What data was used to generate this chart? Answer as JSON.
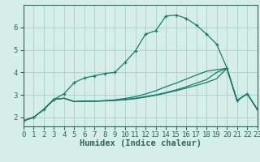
{
  "xlabel": "Humidex (Indice chaleur)",
  "background_color": "#d5eeea",
  "grid_color": "#b0d4cf",
  "line_color": "#1a7a6e",
  "spine_color": "#336655",
  "xlim": [
    0,
    23
  ],
  "ylim": [
    1.6,
    7.0
  ],
  "xticks": [
    0,
    1,
    2,
    3,
    4,
    5,
    6,
    7,
    8,
    9,
    10,
    11,
    12,
    13,
    14,
    15,
    16,
    17,
    18,
    19,
    20,
    21,
    22,
    23
  ],
  "yticks": [
    2,
    3,
    4,
    5,
    6
  ],
  "tick_fontsize": 6.5,
  "xlabel_fontsize": 7.5,
  "series": [
    {
      "y": [
        1.85,
        2.0,
        2.35,
        2.8,
        3.05,
        3.55,
        3.75,
        3.85,
        3.95,
        4.0,
        4.45,
        4.95,
        5.7,
        5.85,
        6.5,
        6.55,
        6.4,
        6.1,
        5.7,
        5.25,
        4.2,
        2.75,
        3.05,
        2.35
      ],
      "marker": "+",
      "ms": 3.5
    },
    {
      "y": [
        1.85,
        2.0,
        2.35,
        2.8,
        2.85,
        2.7,
        2.72,
        2.72,
        2.74,
        2.76,
        2.8,
        2.85,
        2.92,
        3.0,
        3.1,
        3.22,
        3.36,
        3.52,
        3.68,
        4.0,
        4.18,
        2.75,
        3.05,
        2.35
      ],
      "marker": null,
      "ms": 0
    },
    {
      "y": [
        1.85,
        2.0,
        2.35,
        2.8,
        2.85,
        2.7,
        2.72,
        2.72,
        2.74,
        2.78,
        2.84,
        2.92,
        3.04,
        3.18,
        3.36,
        3.52,
        3.7,
        3.88,
        4.05,
        4.12,
        4.18,
        2.75,
        3.05,
        2.35
      ],
      "marker": null,
      "ms": 0
    },
    {
      "y": [
        1.85,
        2.0,
        2.35,
        2.8,
        2.85,
        2.7,
        2.72,
        2.72,
        2.73,
        2.75,
        2.78,
        2.83,
        2.9,
        2.98,
        3.08,
        3.18,
        3.3,
        3.42,
        3.55,
        3.72,
        4.18,
        2.75,
        3.05,
        2.35
      ],
      "marker": null,
      "ms": 0
    }
  ]
}
